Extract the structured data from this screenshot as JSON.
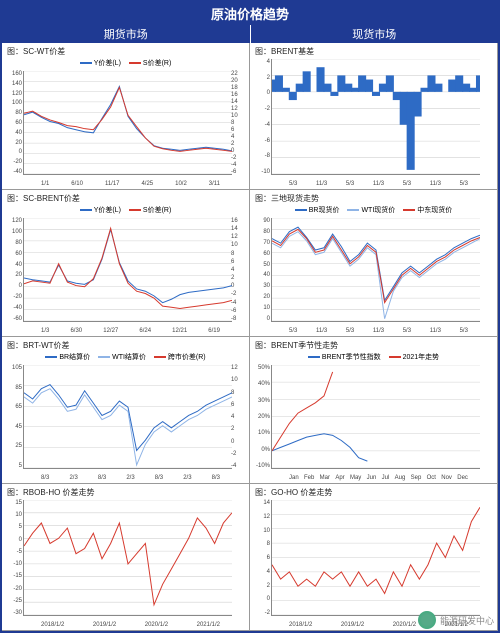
{
  "main_title": "原油价格趋势",
  "sections": {
    "left": "期货市场",
    "right": "现货市场"
  },
  "footer": "能源研发中心",
  "colors": {
    "blue": "#2e6bc5",
    "red": "#d63a2e",
    "lightblue": "#8fb4e6",
    "grid": "#d0d0d0",
    "border": "#1f3a93"
  },
  "panels": [
    {
      "title": "图：SC-WT价差",
      "legend": [
        {
          "label": "Y价差(L)",
          "color": "#2e6bc5"
        },
        {
          "label": "S价差(R)",
          "color": "#d63a2e"
        }
      ],
      "yleft": [
        160,
        140,
        120,
        100,
        80,
        60,
        40,
        20,
        0,
        -20,
        -40
      ],
      "yright": [
        22,
        20,
        18,
        16,
        14,
        12,
        10,
        8,
        6,
        4,
        2,
        0,
        -2,
        -4,
        -6
      ],
      "xticks": [
        "1/1",
        "6/10",
        "11/17",
        "4/25",
        "10/2",
        "3/11"
      ],
      "series": [
        {
          "color": "#2e6bc5",
          "width": 1,
          "data": [
            75,
            80,
            70,
            62,
            58,
            50,
            46,
            42,
            40,
            68,
            95,
            130,
            72,
            48,
            30,
            15,
            10,
            8,
            6,
            8,
            10,
            12,
            10,
            8,
            5
          ]
        },
        {
          "color": "#d63a2e",
          "width": 1,
          "data": [
            78,
            82,
            72,
            65,
            60,
            54,
            52,
            48,
            46,
            66,
            90,
            128,
            74,
            52,
            30,
            14,
            9,
            6,
            4,
            6,
            8,
            10,
            8,
            6,
            4
          ]
        }
      ],
      "ylim_left": [
        -40,
        160
      ]
    },
    {
      "title": "图：BRENT基差",
      "legend": [],
      "yleft": [
        4,
        2,
        0,
        -2,
        -4,
        -6,
        -8,
        -10
      ],
      "yright": [],
      "xticks": [
        "5/3",
        "11/3",
        "5/3",
        "11/3",
        "5/3",
        "11/3",
        "5/3"
      ],
      "series": [
        {
          "color": "#2e6bc5",
          "width": 1,
          "fill": true,
          "data": [
            1.5,
            2,
            0.5,
            -1,
            1,
            2.5,
            0,
            3,
            1,
            -0.5,
            2,
            1,
            0.5,
            2,
            1.5,
            -0.5,
            1,
            2,
            -1,
            -4,
            -9.5,
            -3,
            0.5,
            2,
            1,
            0,
            1.5,
            2,
            1,
            0.5,
            2
          ]
        }
      ],
      "ylim_left": [
        -10,
        4
      ],
      "baseline": 0
    },
    {
      "title": "图：SC-BRENT价差",
      "legend": [
        {
          "label": "Y价差(L)",
          "color": "#2e6bc5"
        },
        {
          "label": "S价差(R)",
          "color": "#d63a2e"
        }
      ],
      "yleft": [
        120,
        100,
        80,
        60,
        40,
        20,
        0,
        -20,
        -40,
        -60
      ],
      "yright": [
        16,
        14,
        12,
        10,
        8,
        6,
        4,
        2,
        0,
        -2,
        -4,
        -6,
        -8
      ],
      "xticks": [
        "1/3",
        "6/30",
        "12/27",
        "6/24",
        "12/21",
        "6/19"
      ],
      "series": [
        {
          "color": "#2e6bc5",
          "width": 1,
          "data": [
            15,
            12,
            10,
            8,
            38,
            10,
            6,
            4,
            12,
            48,
            100,
            42,
            10,
            -4,
            -8,
            -16,
            -28,
            -22,
            -14,
            -10,
            -8,
            -6,
            -4,
            -2,
            2
          ]
        },
        {
          "color": "#d63a2e",
          "width": 1,
          "data": [
            5,
            10,
            8,
            6,
            40,
            8,
            2,
            0,
            14,
            50,
            102,
            40,
            6,
            -8,
            -12,
            -20,
            -34,
            -36,
            -38,
            -36,
            -34,
            -32,
            -30,
            -28,
            -24
          ]
        }
      ],
      "ylim_left": [
        -60,
        120
      ]
    },
    {
      "title": "图：三地现货走势",
      "legend": [
        {
          "label": "BR现货价",
          "color": "#2e6bc5"
        },
        {
          "label": "WTI现货价",
          "color": "#8fb4e6"
        },
        {
          "label": "中东现货价",
          "color": "#d63a2e"
        }
      ],
      "yleft": [
        90,
        80,
        70,
        60,
        50,
        40,
        30,
        20,
        10,
        0
      ],
      "yright": [],
      "xticks": [
        "5/3",
        "11/3",
        "5/3",
        "11/3",
        "5/3",
        "11/3",
        "5/3"
      ],
      "series": [
        {
          "color": "#2e6bc5",
          "width": 1,
          "data": [
            72,
            68,
            78,
            82,
            73,
            62,
            64,
            76,
            65,
            52,
            58,
            68,
            62,
            18,
            30,
            42,
            48,
            42,
            48,
            54,
            58,
            64,
            68,
            72,
            75
          ]
        },
        {
          "color": "#8fb4e6",
          "width": 1,
          "data": [
            68,
            64,
            74,
            78,
            70,
            58,
            60,
            72,
            60,
            48,
            54,
            64,
            58,
            2,
            26,
            38,
            44,
            38,
            44,
            50,
            54,
            60,
            64,
            68,
            72
          ]
        },
        {
          "color": "#d63a2e",
          "width": 1,
          "data": [
            70,
            66,
            76,
            80,
            72,
            60,
            62,
            74,
            62,
            50,
            56,
            66,
            60,
            16,
            28,
            40,
            46,
            40,
            46,
            52,
            56,
            62,
            66,
            70,
            73
          ]
        }
      ],
      "ylim_left": [
        0,
        90
      ]
    },
    {
      "title": "图：BRT-WT价差",
      "legend": [
        {
          "label": "BR结算价",
          "color": "#2e6bc5"
        },
        {
          "label": "WTI结算价",
          "color": "#8fb4e6"
        },
        {
          "label": "跨市价差(R)",
          "color": "#d63a2e"
        }
      ],
      "yleft": [
        105,
        85,
        65,
        45,
        25,
        5
      ],
      "yright": [
        12,
        10,
        8,
        6,
        4,
        2,
        0,
        -2,
        -4
      ],
      "xticks": [
        "8/3",
        "2/3",
        "8/3",
        "2/3",
        "8/3",
        "2/3",
        "8/3"
      ],
      "series": [
        {
          "color": "#2e6bc5",
          "width": 1,
          "data": [
            78,
            72,
            82,
            86,
            76,
            64,
            66,
            80,
            68,
            56,
            60,
            70,
            64,
            22,
            32,
            44,
            50,
            44,
            50,
            56,
            60,
            66,
            70,
            74,
            78
          ]
        },
        {
          "color": "#8fb4e6",
          "width": 1,
          "data": [
            74,
            68,
            78,
            82,
            72,
            60,
            62,
            76,
            64,
            52,
            56,
            66,
            60,
            8,
            28,
            40,
            46,
            40,
            46,
            52,
            56,
            62,
            66,
            70,
            74
          ]
        },
        {
          "color": "#d63a2e",
          "width": 1,
          "data": [
            48,
            46,
            50,
            52,
            48,
            46,
            46,
            50,
            46,
            44,
            46,
            48,
            46,
            68,
            50,
            48,
            48,
            48,
            48,
            50,
            50,
            52,
            52,
            54,
            56
          ],
          "right": true
        }
      ],
      "ylim_left": [
        5,
        105
      ],
      "ylim_right": [
        -4,
        12
      ]
    },
    {
      "title": "图：BRENT季节性走势",
      "legend": [
        {
          "label": "BRENT季节性指数",
          "color": "#2e6bc5"
        },
        {
          "label": "2021年走势",
          "color": "#d63a2e"
        }
      ],
      "yleft": [
        "50%",
        "40%",
        "30%",
        "20%",
        "10%",
        "0%",
        "-10%"
      ],
      "yright": [],
      "xticks": [
        "Jan",
        "Feb",
        "Mar",
        "Apr",
        "May",
        "Jun",
        "Jul",
        "Aug",
        "Sep",
        "Oct",
        "Nov",
        "Dec"
      ],
      "series": [
        {
          "color": "#2e6bc5",
          "width": 1,
          "data": [
            0,
            2,
            4,
            6,
            8,
            9,
            10,
            9,
            6,
            2,
            -4,
            -6
          ]
        },
        {
          "color": "#d63a2e",
          "width": 1,
          "data": [
            0,
            8,
            16,
            22,
            25,
            28,
            32,
            46
          ]
        }
      ],
      "ylim_left": [
        -10,
        50
      ]
    },
    {
      "title": "图：RBOB-HO 价差走势",
      "legend": [],
      "yleft": [
        15,
        10,
        5,
        0,
        -5,
        -10,
        -15,
        -20,
        -25,
        -30
      ],
      "yright": [],
      "xticks": [
        "2018/1/2",
        "2019/1/2",
        "2020/1/2",
        "2021/1/2"
      ],
      "series": [
        {
          "color": "#d63a2e",
          "width": 1,
          "data": [
            -3,
            2,
            6,
            -2,
            0,
            4,
            -6,
            -4,
            2,
            -8,
            -2,
            6,
            -10,
            -6,
            -2,
            -26,
            -18,
            -12,
            -6,
            0,
            8,
            4,
            -2,
            6,
            10
          ]
        }
      ],
      "ylim_left": [
        -30,
        15
      ]
    },
    {
      "title": "图：GO-HO 价差走势",
      "legend": [],
      "yleft": [
        14,
        12,
        10,
        8,
        6,
        4,
        2,
        0,
        -2
      ],
      "yright": [],
      "xticks": [
        "2018/1/2",
        "2019/1/2",
        "2020/1/2",
        "2021/1/2"
      ],
      "series": [
        {
          "color": "#d63a2e",
          "width": 1,
          "data": [
            5,
            3,
            4,
            2,
            3,
            2,
            4,
            3,
            4,
            2,
            4,
            2,
            3,
            1,
            4,
            2,
            5,
            3,
            5,
            8,
            6,
            9,
            7,
            11,
            13
          ]
        }
      ],
      "ylim_left": [
        -2,
        14
      ]
    }
  ]
}
